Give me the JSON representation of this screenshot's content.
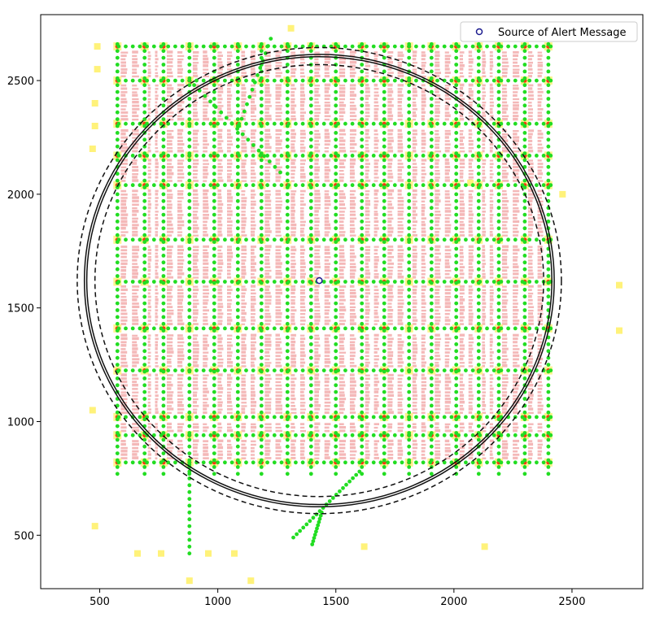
{
  "chart_data": {
    "type": "scatter",
    "title": "",
    "xlabel": "",
    "ylabel": "",
    "xlim": [
      250,
      2800
    ],
    "ylim": [
      265,
      2790
    ],
    "xticks": [
      500,
      1000,
      1500,
      2000,
      2500
    ],
    "yticks": [
      500,
      1000,
      1500,
      2000,
      2500
    ],
    "grid": false,
    "legend": {
      "position": "top-right",
      "entries": [
        "Source of Alert Message"
      ]
    },
    "source": {
      "name": "Source of Alert Message",
      "x": 1430,
      "y": 1620
    },
    "circles": [
      {
        "style": "dashed",
        "radius": 1025
      },
      {
        "style": "solid",
        "radius": 995
      },
      {
        "style": "solid",
        "radius": 985
      },
      {
        "style": "dashed",
        "radius": 950
      }
    ],
    "street_grid": {
      "streets_x": [
        575,
        690,
        770,
        880,
        985,
        1085,
        1185,
        1295,
        1395,
        1500,
        1610,
        1705,
        1810,
        1905,
        2010,
        2105,
        2190,
        2300,
        2400
      ],
      "streets_y": [
        820,
        940,
        1020,
        1225,
        1410,
        1615,
        1800,
        2040,
        2170,
        2310,
        2500,
        2650
      ],
      "x_extent": [
        570,
        2420
      ],
      "y_extent": [
        760,
        2660
      ]
    },
    "colors": {
      "node": "#22dd22",
      "building": "#f4b8b8",
      "relay": "#ff3311",
      "zone": "#fff27a",
      "circle": "#111111",
      "source_face": "#ffffff",
      "source_edge": "#1d1d8f"
    }
  }
}
